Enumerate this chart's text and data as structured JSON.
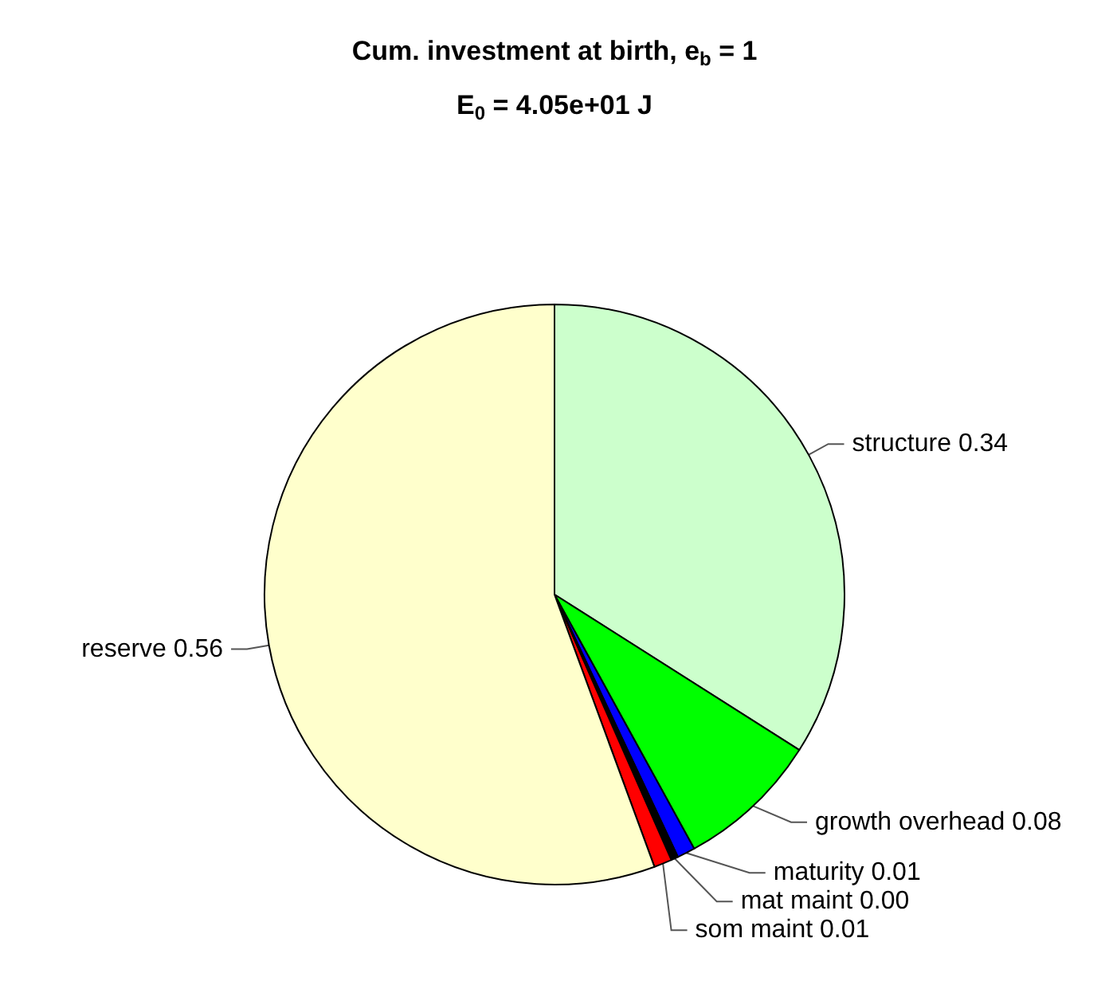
{
  "chart_data": {
    "type": "pie",
    "title": "Cum. investment at birth, e$_{b}$ = 1",
    "subtitle": "E$_{0}$ = 4.05e+01 J",
    "categories": [
      "structure",
      "growth overhead",
      "maturity",
      "mat maint",
      "som maint",
      "reserve"
    ],
    "values": [
      0.34,
      0.08,
      0.01,
      0.004,
      0.01,
      0.556
    ],
    "value_labels": [
      "0.34",
      "0.08",
      "0.01",
      "0.00",
      "0.01",
      "0.56"
    ],
    "colors": [
      "#ccffcc",
      "#00ff00",
      "#0000ff",
      "#000000",
      "#ff0000",
      "#ffffcc"
    ],
    "legend": false
  }
}
